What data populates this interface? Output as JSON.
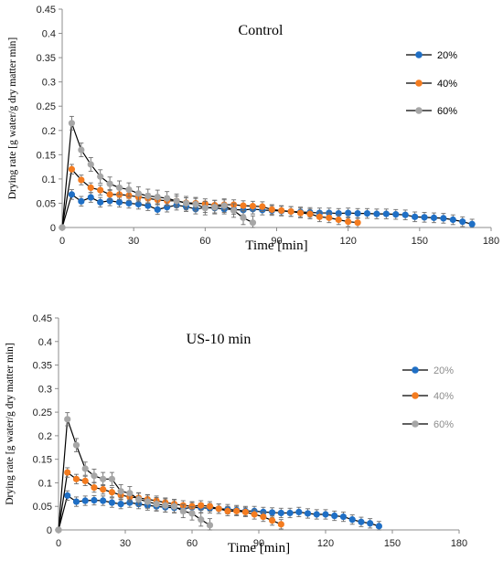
{
  "colors": {
    "s20": "#1f6fc5",
    "s40": "#f47c20",
    "s60": "#a6a6a6",
    "line": "#000000",
    "axis": "#8c8c8c"
  },
  "chart_data": [
    {
      "type": "line",
      "title": "Control",
      "xlabel": "Time [min]",
      "ylabel": "Drying rate [g water/g dry matter min]",
      "xlim": [
        0,
        180
      ],
      "ylim": [
        0,
        0.45
      ],
      "xticks": [
        0,
        30,
        60,
        90,
        120,
        150,
        180
      ],
      "yticks": [
        0,
        0.05,
        0.1,
        0.15,
        0.2,
        0.25,
        0.3,
        0.35,
        0.4,
        0.45
      ],
      "ytick_labels": [
        "0",
        "0.05",
        "0.1",
        "0.15",
        "0.2",
        "0.25",
        "0.3",
        "0.35",
        "0.4",
        "0.45"
      ],
      "legend_position": "right",
      "legend_text_color": "#000000",
      "series": [
        {
          "name": "20%",
          "color": "#1f6fc5",
          "x": [
            0,
            4,
            8,
            12,
            16,
            20,
            24,
            28,
            32,
            36,
            40,
            44,
            48,
            52,
            56,
            60,
            64,
            68,
            72,
            76,
            80,
            84,
            88,
            92,
            96,
            100,
            104,
            108,
            112,
            116,
            120,
            124,
            128,
            132,
            136,
            140,
            144,
            148,
            152,
            156,
            160,
            164,
            168,
            172
          ],
          "y": [
            0,
            0.068,
            0.054,
            0.062,
            0.052,
            0.055,
            0.052,
            0.05,
            0.048,
            0.045,
            0.037,
            0.042,
            0.046,
            0.043,
            0.038,
            0.041,
            0.04,
            0.038,
            0.037,
            0.036,
            0.038,
            0.036,
            0.035,
            0.034,
            0.033,
            0.032,
            0.031,
            0.03,
            0.03,
            0.029,
            0.03,
            0.029,
            0.029,
            0.028,
            0.028,
            0.027,
            0.026,
            0.022,
            0.021,
            0.02,
            0.019,
            0.016,
            0.012,
            0.007
          ],
          "err": 0.01
        },
        {
          "name": "40%",
          "color": "#f47c20",
          "x": [
            0,
            4,
            8,
            12,
            16,
            20,
            24,
            28,
            32,
            36,
            40,
            44,
            48,
            52,
            56,
            60,
            64,
            68,
            72,
            76,
            80,
            84,
            88,
            92,
            96,
            100,
            104,
            108,
            112,
            116,
            120,
            124
          ],
          "y": [
            0,
            0.12,
            0.098,
            0.082,
            0.077,
            0.068,
            0.068,
            0.066,
            0.063,
            0.06,
            0.057,
            0.055,
            0.055,
            0.051,
            0.05,
            0.049,
            0.046,
            0.047,
            0.047,
            0.045,
            0.044,
            0.043,
            0.037,
            0.035,
            0.033,
            0.03,
            0.028,
            0.022,
            0.02,
            0.016,
            0.012,
            0.01
          ],
          "err": 0.01
        },
        {
          "name": "60%",
          "color": "#a6a6a6",
          "x": [
            0,
            4,
            8,
            12,
            16,
            20,
            24,
            28,
            32,
            36,
            40,
            44,
            48,
            52,
            56,
            60,
            64,
            68,
            72,
            76,
            80
          ],
          "y": [
            0,
            0.215,
            0.16,
            0.13,
            0.105,
            0.09,
            0.082,
            0.078,
            0.07,
            0.065,
            0.063,
            0.06,
            0.055,
            0.05,
            0.048,
            0.04,
            0.042,
            0.045,
            0.035,
            0.02,
            0.01
          ],
          "err": 0.014
        }
      ]
    },
    {
      "type": "line",
      "title": "US-10 min",
      "xlabel": "Time [min]",
      "ylabel": "Drying rate [g water/g dry matter min]",
      "xlim": [
        0,
        180
      ],
      "ylim": [
        0,
        0.45
      ],
      "xticks": [
        0,
        30,
        60,
        90,
        120,
        150,
        180
      ],
      "yticks": [
        0,
        0.05,
        0.1,
        0.15,
        0.2,
        0.25,
        0.3,
        0.35,
        0.4,
        0.45
      ],
      "ytick_labels": [
        "0",
        "0.05",
        "0.1",
        "0.15",
        "0.2",
        "0.25",
        "0.3",
        "0.35",
        "0.4",
        "0.45"
      ],
      "legend_position": "right",
      "legend_text_color": "#8c8c8c",
      "series": [
        {
          "name": "20%",
          "color": "#1f6fc5",
          "x": [
            0,
            4,
            8,
            12,
            16,
            20,
            24,
            28,
            32,
            36,
            40,
            44,
            48,
            52,
            56,
            60,
            64,
            68,
            72,
            76,
            80,
            84,
            88,
            92,
            96,
            100,
            104,
            108,
            112,
            116,
            120,
            124,
            128,
            132,
            136,
            140,
            144
          ],
          "y": [
            0,
            0.073,
            0.06,
            0.062,
            0.063,
            0.062,
            0.058,
            0.055,
            0.058,
            0.055,
            0.052,
            0.05,
            0.048,
            0.047,
            0.045,
            0.048,
            0.047,
            0.046,
            0.045,
            0.044,
            0.042,
            0.04,
            0.04,
            0.038,
            0.037,
            0.036,
            0.036,
            0.038,
            0.035,
            0.033,
            0.033,
            0.03,
            0.028,
            0.022,
            0.017,
            0.014,
            0.008
          ],
          "err": 0.01
        },
        {
          "name": "40%",
          "color": "#f47c20",
          "x": [
            0,
            4,
            8,
            12,
            16,
            20,
            24,
            28,
            32,
            36,
            40,
            44,
            48,
            52,
            56,
            60,
            64,
            68,
            72,
            76,
            80,
            84,
            88,
            92,
            96,
            100
          ],
          "y": [
            0,
            0.122,
            0.108,
            0.104,
            0.09,
            0.086,
            0.08,
            0.074,
            0.07,
            0.068,
            0.065,
            0.062,
            0.058,
            0.055,
            0.052,
            0.05,
            0.052,
            0.05,
            0.045,
            0.04,
            0.04,
            0.038,
            0.033,
            0.028,
            0.02,
            0.012
          ],
          "err": 0.01
        },
        {
          "name": "60%",
          "color": "#a6a6a6",
          "x": [
            0,
            4,
            8,
            12,
            16,
            20,
            24,
            28,
            32,
            36,
            40,
            44,
            48,
            52,
            56,
            60,
            64,
            68
          ],
          "y": [
            0,
            0.235,
            0.18,
            0.13,
            0.115,
            0.108,
            0.108,
            0.082,
            0.078,
            0.065,
            0.06,
            0.055,
            0.052,
            0.05,
            0.04,
            0.035,
            0.022,
            0.01
          ],
          "err": 0.014
        }
      ]
    }
  ]
}
